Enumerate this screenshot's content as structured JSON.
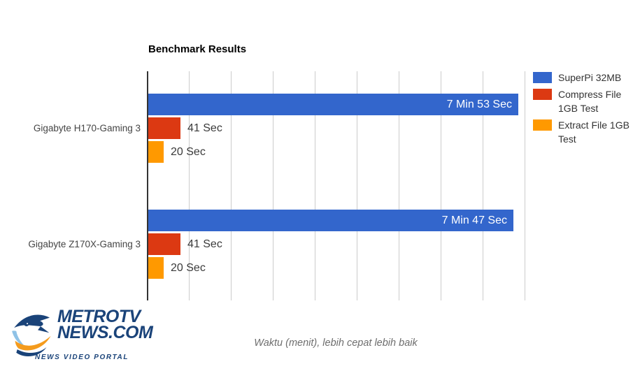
{
  "chart": {
    "title": "Benchmark Results",
    "axis_title": "Waktu (menit), lebih cepat lebih baik"
  },
  "chart_data": {
    "type": "bar",
    "orientation": "horizontal",
    "title": "Benchmark Results",
    "xlabel": "Waktu (menit), lebih cepat lebih baik",
    "categories": [
      "Gigabyte H170-Gaming 3",
      "Gigabyte Z170X-Gaming 3"
    ],
    "series": [
      {
        "key": "superpi",
        "name": "SuperPi 32MB",
        "color": "#3366CC",
        "values_seconds": [
          473,
          467
        ],
        "labels": [
          "7 Min 53 Sec",
          "7 Min 47 Sec"
        ]
      },
      {
        "key": "compress",
        "name": "Compress File 1GB Test",
        "color": "#DC3912",
        "values_seconds": [
          41,
          41
        ],
        "labels": [
          "41 Sec",
          "41 Sec"
        ]
      },
      {
        "key": "extract",
        "name": "Extract File 1GB Test",
        "color": "#FF9900",
        "values_seconds": [
          20,
          20
        ],
        "labels": [
          "20 Sec",
          "20 Sec"
        ]
      }
    ],
    "x_axis": {
      "min_seconds": 0,
      "max_seconds": 480,
      "gridline_count": 10,
      "tick_labels_visible": false,
      "grid": true
    },
    "legend_position": "right",
    "value_label_placement": "inside-end for long bars, outside-end for short bars"
  },
  "legend": {
    "items": [
      {
        "label": "SuperPi 32MB",
        "color": "#3366CC"
      },
      {
        "label": "Compress File 1GB Test",
        "color": "#DC3912"
      },
      {
        "label": "Extract File 1GB Test",
        "color": "#FF9900"
      }
    ]
  },
  "colors": {
    "series_blue": "#3366CC",
    "series_red": "#DC3912",
    "series_orange": "#FF9900",
    "gridline": "#CCCCCC",
    "axis_line": "#333333",
    "logo_navy": "#1A4379",
    "logo_lightblue": "#8FC2E6",
    "logo_orange": "#F49B1D"
  },
  "logo": {
    "line1": "METROTV",
    "line2": "NEWS.COM",
    "tagline": "NEWS VIDEO PORTAL"
  }
}
